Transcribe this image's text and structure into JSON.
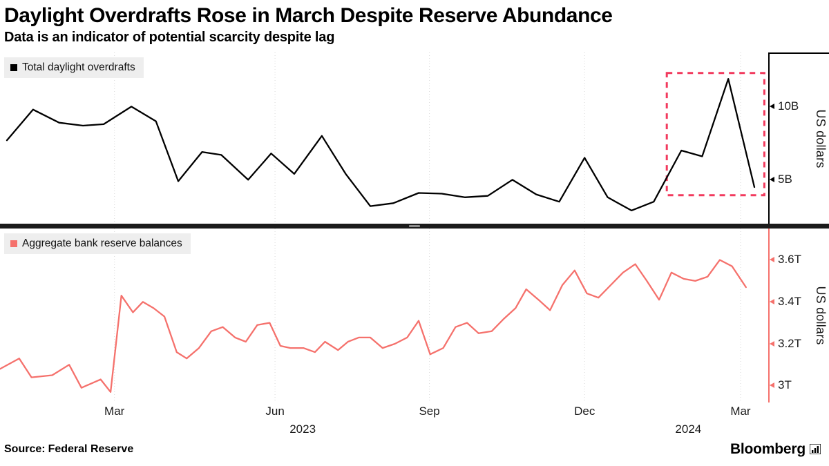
{
  "header": {
    "title": "Daylight Overdrafts Rose in March Despite Reserve Abundance",
    "subtitle": "Data is an indicator of potential scarcity despite lag"
  },
  "chart_data": [
    {
      "type": "line",
      "name": "total-daylight-overdrafts",
      "legend": "Total daylight overdrafts",
      "color": "#000000",
      "ylabel": "US dollars",
      "unit": "billions of US dollars",
      "ylim": [
        1.9,
        13.6
      ],
      "yticks": [
        {
          "value": 10,
          "label": "10B"
        },
        {
          "value": 5,
          "label": "5B"
        }
      ],
      "x": [
        0.009,
        0.043,
        0.077,
        0.108,
        0.135,
        0.171,
        0.203,
        0.232,
        0.263,
        0.288,
        0.323,
        0.353,
        0.383,
        0.419,
        0.45,
        0.482,
        0.512,
        0.545,
        0.575,
        0.605,
        0.635,
        0.667,
        0.698,
        0.728,
        0.761,
        0.791,
        0.822,
        0.851,
        0.887,
        0.914,
        0.948,
        0.982
      ],
      "values": [
        7.6,
        9.7,
        8.8,
        8.6,
        8.7,
        9.9,
        8.9,
        4.8,
        6.8,
        6.6,
        4.9,
        6.7,
        5.3,
        7.9,
        5.3,
        3.1,
        3.3,
        4.0,
        3.95,
        3.7,
        3.8,
        4.9,
        3.9,
        3.4,
        6.4,
        3.7,
        2.8,
        3.4,
        6.9,
        6.5,
        11.8,
        4.4
      ],
      "highlight_box": {
        "x0": 0.868,
        "x1": 0.995,
        "y0": 3.85,
        "y1": 12.2,
        "color": "#f23a5e",
        "style": "dashed"
      }
    },
    {
      "type": "line",
      "name": "aggregate-bank-reserve-balances",
      "legend": "Aggregate bank reserve balances",
      "color": "#f5716c",
      "ylabel": "US dollars",
      "unit": "trillions of US dollars",
      "ylim": [
        2.92,
        3.75
      ],
      "yticks": [
        {
          "value": 3.6,
          "label": "3.6T"
        },
        {
          "value": 3.4,
          "label": "3.4T"
        },
        {
          "value": 3.2,
          "label": "3.2T"
        },
        {
          "value": 3.0,
          "label": "3T"
        }
      ],
      "x": [
        0.0,
        0.025,
        0.041,
        0.068,
        0.09,
        0.106,
        0.131,
        0.144,
        0.158,
        0.173,
        0.186,
        0.2,
        0.214,
        0.23,
        0.243,
        0.259,
        0.275,
        0.29,
        0.306,
        0.32,
        0.335,
        0.351,
        0.365,
        0.378,
        0.395,
        0.41,
        0.423,
        0.44,
        0.453,
        0.467,
        0.482,
        0.498,
        0.514,
        0.53,
        0.545,
        0.56,
        0.577,
        0.593,
        0.608,
        0.623,
        0.64,
        0.656,
        0.671,
        0.685,
        0.701,
        0.716,
        0.732,
        0.748,
        0.764,
        0.779,
        0.795,
        0.811,
        0.827,
        0.842,
        0.858,
        0.874,
        0.89,
        0.905,
        0.921,
        0.937,
        0.953,
        0.971
      ],
      "values": [
        3.08,
        3.13,
        3.04,
        3.05,
        3.1,
        2.99,
        3.03,
        2.97,
        3.43,
        3.35,
        3.4,
        3.37,
        3.33,
        3.16,
        3.13,
        3.18,
        3.26,
        3.28,
        3.23,
        3.21,
        3.29,
        3.3,
        3.19,
        3.18,
        3.18,
        3.16,
        3.21,
        3.17,
        3.21,
        3.23,
        3.23,
        3.18,
        3.2,
        3.23,
        3.31,
        3.15,
        3.18,
        3.28,
        3.3,
        3.25,
        3.26,
        3.32,
        3.37,
        3.46,
        3.41,
        3.36,
        3.48,
        3.55,
        3.44,
        3.42,
        3.48,
        3.54,
        3.58,
        3.5,
        3.41,
        3.54,
        3.51,
        3.5,
        3.52,
        3.6,
        3.57,
        3.47
      ]
    }
  ],
  "x_axis": {
    "ticks": [
      {
        "label": "Mar",
        "pos": 0.149
      },
      {
        "label": "Jun",
        "pos": 0.358
      },
      {
        "label": "Sep",
        "pos": 0.559
      },
      {
        "label": "Dec",
        "pos": 0.761
      },
      {
        "label": "Mar",
        "pos": 0.964
      }
    ],
    "years": [
      {
        "label": "2023",
        "pos": 0.394
      },
      {
        "label": "2024",
        "pos": 0.896
      }
    ]
  },
  "footer": {
    "source_label": "Source:",
    "source_value": "Federal Reserve",
    "brand": "Bloomberg"
  }
}
